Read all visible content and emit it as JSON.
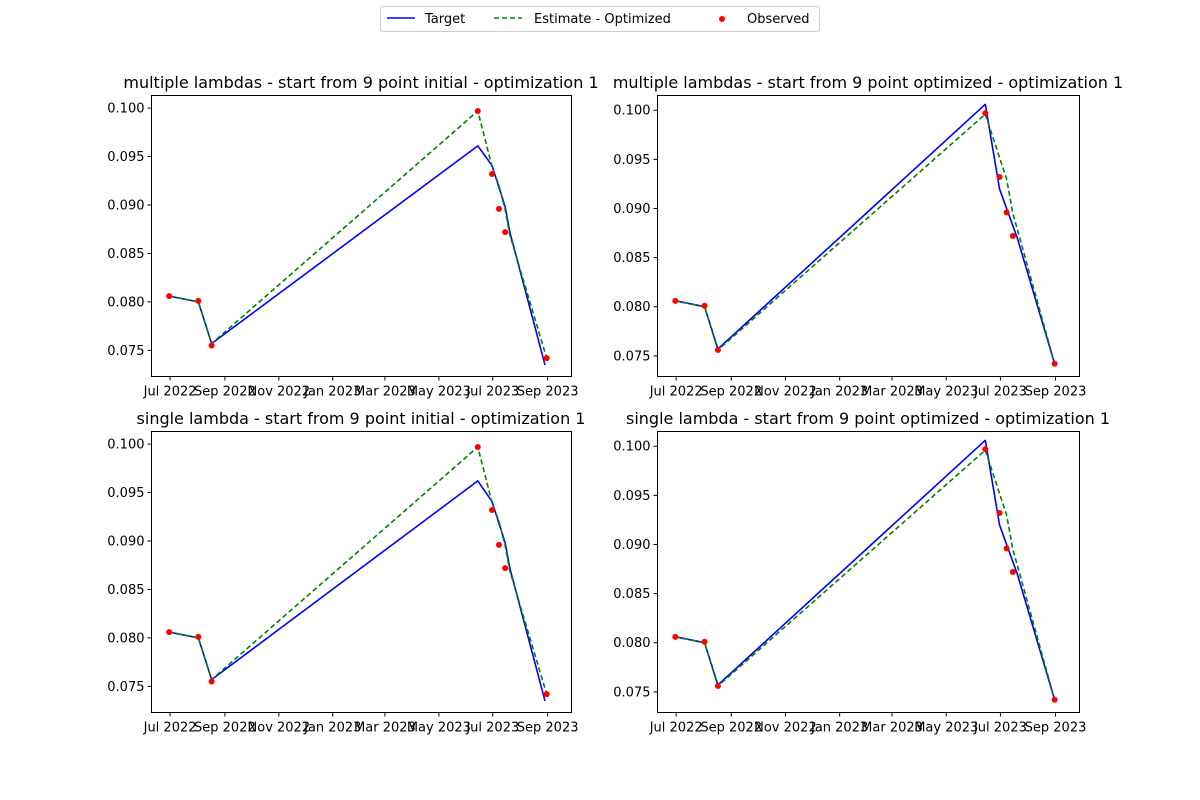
{
  "legend": {
    "items": [
      {
        "label": "Target",
        "color": "#0000ff",
        "style": "solid"
      },
      {
        "label": "Estimate - Optimized",
        "color": "#008000",
        "style": "dashed"
      },
      {
        "label": "Observed",
        "color": "#ff0000",
        "style": "marker"
      }
    ]
  },
  "chart_data": [
    {
      "type": "line",
      "title": "multiple lambdas - start from 9 point initial - optimization 1",
      "xlabel": "",
      "ylabel": "",
      "xlim": [
        "2022-06-10",
        "2023-09-28"
      ],
      "ylim": [
        0.0723,
        0.1013
      ],
      "x_ticks": [
        "2022-07-01",
        "2022-09-01",
        "2022-11-01",
        "2023-01-01",
        "2023-03-01",
        "2023-05-01",
        "2023-07-01",
        "2023-09-01"
      ],
      "x_tick_labels": [
        "Jul 2022",
        "Sep 2022",
        "Nov 2022",
        "Jan 2023",
        "Mar 2023",
        "May 2023",
        "Jul 2023",
        "Sep 2023"
      ],
      "y_ticks": [
        0.075,
        0.08,
        0.085,
        0.09,
        0.095,
        0.1
      ],
      "y_tick_labels": [
        "0.075",
        "0.080",
        "0.085",
        "0.090",
        "0.095",
        "0.100"
      ],
      "series": [
        {
          "name": "Target",
          "color": "#0000ff",
          "x": [
            "2022-06-30",
            "2022-08-02",
            "2022-08-17",
            "2023-06-14",
            "2023-06-30",
            "2023-07-15",
            "2023-07-20",
            "2023-08-29"
          ],
          "y": [
            0.0806,
            0.08,
            0.0757,
            0.0961,
            0.0941,
            0.0898,
            0.0873,
            0.0735
          ]
        },
        {
          "name": "Estimate - Optimized",
          "color": "#008000",
          "x": [
            "2022-06-30",
            "2022-08-02",
            "2022-08-17",
            "2023-06-14",
            "2023-06-30",
            "2023-07-08",
            "2023-07-15",
            "2023-07-20",
            "2023-08-31"
          ],
          "y": [
            0.0806,
            0.08,
            0.0757,
            0.0997,
            0.094,
            0.092,
            0.0895,
            0.087,
            0.0742
          ]
        },
        {
          "name": "Observed",
          "color": "#ff0000",
          "x": [
            "2022-06-30",
            "2022-08-02",
            "2022-08-17",
            "2023-06-14",
            "2023-06-30",
            "2023-07-08",
            "2023-07-15",
            "2023-08-31"
          ],
          "y": [
            0.0806,
            0.0801,
            0.0755,
            0.0997,
            0.0932,
            0.0896,
            0.0872,
            0.0742
          ]
        }
      ]
    },
    {
      "type": "line",
      "title": "multiple lambdas - start from 9 point optimized - optimization 1",
      "xlabel": "",
      "ylabel": "",
      "xlim": [
        "2022-06-10",
        "2023-09-28"
      ],
      "ylim": [
        0.0729,
        0.1015
      ],
      "x_ticks": [
        "2022-07-01",
        "2022-09-01",
        "2022-11-01",
        "2023-01-01",
        "2023-03-01",
        "2023-05-01",
        "2023-07-01",
        "2023-09-01"
      ],
      "x_tick_labels": [
        "Jul 2022",
        "Sep 2022",
        "Nov 2022",
        "Jan 2023",
        "Mar 2023",
        "May 2023",
        "Jul 2023",
        "Sep 2023"
      ],
      "y_ticks": [
        0.075,
        0.08,
        0.085,
        0.09,
        0.095,
        0.1
      ],
      "y_tick_labels": [
        "0.075",
        "0.080",
        "0.085",
        "0.090",
        "0.095",
        "0.100"
      ],
      "series": [
        {
          "name": "Target",
          "color": "#0000ff",
          "x": [
            "2022-06-30",
            "2022-08-02",
            "2022-08-17",
            "2023-06-14",
            "2023-06-30",
            "2023-07-20",
            "2023-08-31"
          ],
          "y": [
            0.0806,
            0.08,
            0.0757,
            0.1006,
            0.092,
            0.087,
            0.0742
          ]
        },
        {
          "name": "Estimate - Optimized",
          "color": "#008000",
          "x": [
            "2022-06-30",
            "2022-08-02",
            "2022-08-17",
            "2023-06-14",
            "2023-07-08",
            "2023-07-15",
            "2023-08-31"
          ],
          "y": [
            0.0806,
            0.08,
            0.0756,
            0.0996,
            0.093,
            0.0895,
            0.0742
          ]
        },
        {
          "name": "Observed",
          "color": "#ff0000",
          "x": [
            "2022-06-30",
            "2022-08-02",
            "2022-08-17",
            "2023-06-14",
            "2023-06-30",
            "2023-07-08",
            "2023-07-15",
            "2023-08-31"
          ],
          "y": [
            0.0806,
            0.0801,
            0.0756,
            0.0997,
            0.0932,
            0.0896,
            0.0872,
            0.0742
          ]
        }
      ]
    },
    {
      "type": "line",
      "title": "single lambda - start from 9 point initial - optimization 1",
      "xlabel": "",
      "ylabel": "",
      "xlim": [
        "2022-06-10",
        "2023-09-28"
      ],
      "ylim": [
        0.0723,
        0.1013
      ],
      "x_ticks": [
        "2022-07-01",
        "2022-09-01",
        "2022-11-01",
        "2023-01-01",
        "2023-03-01",
        "2023-05-01",
        "2023-07-01",
        "2023-09-01"
      ],
      "x_tick_labels": [
        "Jul 2022",
        "Sep 2022",
        "Nov 2022",
        "Jan 2023",
        "Mar 2023",
        "May 2023",
        "Jul 2023",
        "Sep 2023"
      ],
      "y_ticks": [
        0.075,
        0.08,
        0.085,
        0.09,
        0.095,
        0.1
      ],
      "y_tick_labels": [
        "0.075",
        "0.080",
        "0.085",
        "0.090",
        "0.095",
        "0.100"
      ],
      "series": [
        {
          "name": "Target",
          "color": "#0000ff",
          "x": [
            "2022-06-30",
            "2022-08-02",
            "2022-08-17",
            "2023-06-14",
            "2023-06-30",
            "2023-07-15",
            "2023-07-20",
            "2023-08-29"
          ],
          "y": [
            0.0806,
            0.08,
            0.0757,
            0.0962,
            0.0941,
            0.0898,
            0.0873,
            0.0735
          ]
        },
        {
          "name": "Estimate - Optimized",
          "color": "#008000",
          "x": [
            "2022-06-30",
            "2022-08-02",
            "2022-08-17",
            "2023-06-14",
            "2023-06-30",
            "2023-07-08",
            "2023-07-15",
            "2023-07-20",
            "2023-08-31"
          ],
          "y": [
            0.0806,
            0.08,
            0.0757,
            0.0997,
            0.094,
            0.092,
            0.0895,
            0.087,
            0.0742
          ]
        },
        {
          "name": "Observed",
          "color": "#ff0000",
          "x": [
            "2022-06-30",
            "2022-08-02",
            "2022-08-17",
            "2023-06-14",
            "2023-06-30",
            "2023-07-08",
            "2023-07-15",
            "2023-08-31"
          ],
          "y": [
            0.0806,
            0.0801,
            0.0755,
            0.0997,
            0.0932,
            0.0896,
            0.0872,
            0.0742
          ]
        }
      ]
    },
    {
      "type": "line",
      "title": "single lambda - start from 9 point optimized - optimization 1",
      "xlabel": "",
      "ylabel": "",
      "xlim": [
        "2022-06-10",
        "2023-09-28"
      ],
      "ylim": [
        0.0729,
        0.1015
      ],
      "x_ticks": [
        "2022-07-01",
        "2022-09-01",
        "2022-11-01",
        "2023-01-01",
        "2023-03-01",
        "2023-05-01",
        "2023-07-01",
        "2023-09-01"
      ],
      "x_tick_labels": [
        "Jul 2022",
        "Sep 2022",
        "Nov 2022",
        "Jan 2023",
        "Mar 2023",
        "May 2023",
        "Jul 2023",
        "Sep 2023"
      ],
      "y_ticks": [
        0.075,
        0.08,
        0.085,
        0.09,
        0.095,
        0.1
      ],
      "y_tick_labels": [
        "0.075",
        "0.080",
        "0.085",
        "0.090",
        "0.095",
        "0.100"
      ],
      "series": [
        {
          "name": "Target",
          "color": "#0000ff",
          "x": [
            "2022-06-30",
            "2022-08-02",
            "2022-08-17",
            "2023-06-14",
            "2023-06-30",
            "2023-07-20",
            "2023-08-31"
          ],
          "y": [
            0.0806,
            0.08,
            0.0757,
            0.1006,
            0.092,
            0.087,
            0.0742
          ]
        },
        {
          "name": "Estimate - Optimized",
          "color": "#008000",
          "x": [
            "2022-06-30",
            "2022-08-02",
            "2022-08-17",
            "2023-06-14",
            "2023-07-08",
            "2023-07-15",
            "2023-08-31"
          ],
          "y": [
            0.0806,
            0.08,
            0.0756,
            0.0996,
            0.093,
            0.0895,
            0.0742
          ]
        },
        {
          "name": "Observed",
          "color": "#ff0000",
          "x": [
            "2022-06-30",
            "2022-08-02",
            "2022-08-17",
            "2023-06-14",
            "2023-06-30",
            "2023-07-08",
            "2023-07-15",
            "2023-08-31"
          ],
          "y": [
            0.0806,
            0.0801,
            0.0756,
            0.0997,
            0.0932,
            0.0896,
            0.0872,
            0.0742
          ]
        }
      ]
    }
  ]
}
